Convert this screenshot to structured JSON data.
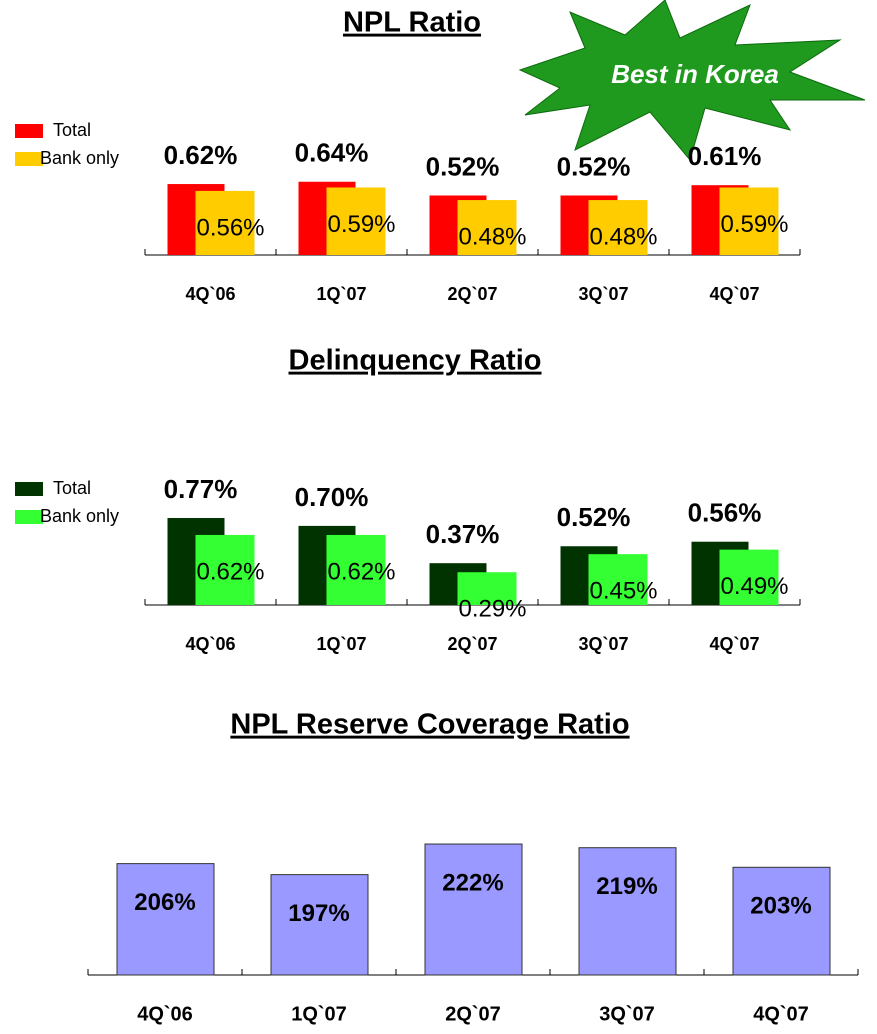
{
  "chart_data": [
    {
      "type": "bar",
      "title": "NPL Ratio",
      "annotation": "Best in Korea",
      "categories": [
        "4Q`06",
        "1Q`07",
        "2Q`07",
        "3Q`07",
        "4Q`07"
      ],
      "series": [
        {
          "name": "Total",
          "color": "#ff0000",
          "values": [
            0.62,
            0.64,
            0.52,
            0.52,
            0.61
          ],
          "value_labels": [
            "0.62%",
            "0.64%",
            "0.52%",
            "0.52%",
            "0.61%"
          ]
        },
        {
          "name": "Bank only",
          "color": "#ffcc00",
          "values": [
            0.56,
            0.59,
            0.48,
            0.48,
            0.59
          ],
          "value_labels": [
            "0.56%",
            "0.59%",
            "0.48%",
            "0.48%",
            "0.59%"
          ]
        }
      ],
      "ylim": [
        0,
        0.9
      ]
    },
    {
      "type": "bar",
      "title": "Delinquency Ratio",
      "categories": [
        "4Q`06",
        "1Q`07",
        "2Q`07",
        "3Q`07",
        "4Q`07"
      ],
      "series": [
        {
          "name": "Total",
          "color": "#003300",
          "values": [
            0.77,
            0.7,
            0.37,
            0.52,
            0.56
          ],
          "value_labels": [
            "0.77%",
            "0.70%",
            "0.37%",
            "0.52%",
            "0.56%"
          ]
        },
        {
          "name": "Bank only",
          "color": "#33ff33",
          "values": [
            0.62,
            0.62,
            0.29,
            0.45,
            0.49
          ],
          "value_labels": [
            "0.62%",
            "0.62%",
            "0.29%",
            "0.45%",
            "0.49%"
          ]
        }
      ],
      "ylim": [
        0,
        1
      ]
    },
    {
      "type": "bar",
      "title": "NPL Reserve Coverage Ratio",
      "categories": [
        "4Q`06",
        "1Q`07",
        "2Q`07",
        "3Q`07",
        "4Q`07"
      ],
      "values": [
        206,
        197,
        222,
        219,
        203
      ],
      "value_labels": [
        "206%",
        "197%",
        "222%",
        "219%",
        "203%"
      ],
      "color": "#9999ff",
      "ylim": [
        115,
        240
      ]
    }
  ]
}
